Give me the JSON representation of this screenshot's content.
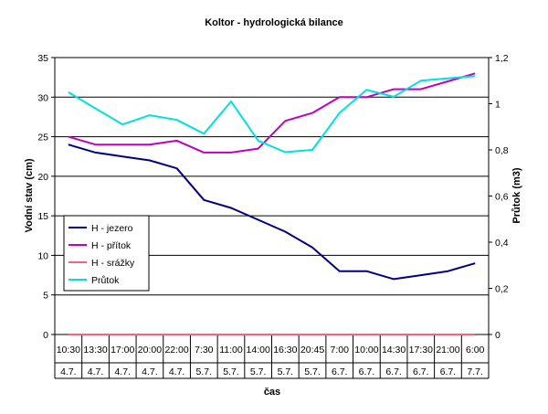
{
  "chart_data": {
    "type": "line",
    "title": "Koltor - hydrologická bilance",
    "xlabel": "čas",
    "ylabel": "Vodní stav (cm)",
    "y2label": "Průtok (m3)",
    "categories": [
      {
        "time": "10:30",
        "date": "4.7."
      },
      {
        "time": "13:30",
        "date": "4.7."
      },
      {
        "time": "17:00",
        "date": "4.7."
      },
      {
        "time": "20:00",
        "date": "4.7."
      },
      {
        "time": "22:00",
        "date": "4.7."
      },
      {
        "time": "7:30",
        "date": "5.7."
      },
      {
        "time": "11:00",
        "date": "5.7."
      },
      {
        "time": "14:00",
        "date": "5.7."
      },
      {
        "time": "16:30",
        "date": "5.7."
      },
      {
        "time": "20:45",
        "date": "5.7."
      },
      {
        "time": "7:00",
        "date": "6.7."
      },
      {
        "time": "10:00",
        "date": "6.7."
      },
      {
        "time": "14:30",
        "date": "6.7."
      },
      {
        "time": "17:30",
        "date": "6.7."
      },
      {
        "time": "21:00",
        "date": "6.7."
      },
      {
        "time": "6:00",
        "date": "7.7."
      }
    ],
    "ylim": [
      0,
      35
    ],
    "yticks": [
      "0",
      "5",
      "10",
      "15",
      "20",
      "25",
      "30",
      "35"
    ],
    "y2lim": [
      0,
      1.2
    ],
    "y2ticks": [
      "0",
      "0,2",
      "0,4",
      "0,6",
      "0,8",
      "1",
      "1,2"
    ],
    "grid": "horizontal",
    "legend_position": "left",
    "series": [
      {
        "name": "H - jezero",
        "axis": "left",
        "color": "#000080",
        "values": [
          24,
          23,
          22.5,
          22,
          21,
          17,
          16,
          14.5,
          13,
          11,
          8,
          8,
          7,
          7.5,
          8,
          9
        ]
      },
      {
        "name": "H - přítok",
        "axis": "left",
        "color": "#c000c0",
        "values": [
          25,
          24,
          24,
          24,
          24.5,
          23,
          23,
          23.5,
          27,
          28,
          30,
          30,
          31,
          31,
          32,
          33
        ]
      },
      {
        "name": "H - srážky",
        "axis": "left",
        "color": "#ff6080",
        "values": [
          0,
          0,
          0,
          0,
          0,
          0,
          0,
          0,
          0,
          0,
          0,
          0,
          0,
          0,
          0,
          0
        ]
      },
      {
        "name": "Průtok",
        "axis": "right",
        "color": "#00e0e0",
        "values": [
          1.05,
          0.98,
          0.91,
          0.95,
          0.93,
          0.87,
          1.01,
          0.84,
          0.79,
          0.8,
          0.96,
          1.06,
          1.03,
          1.1,
          1.11,
          1.12
        ]
      }
    ]
  }
}
